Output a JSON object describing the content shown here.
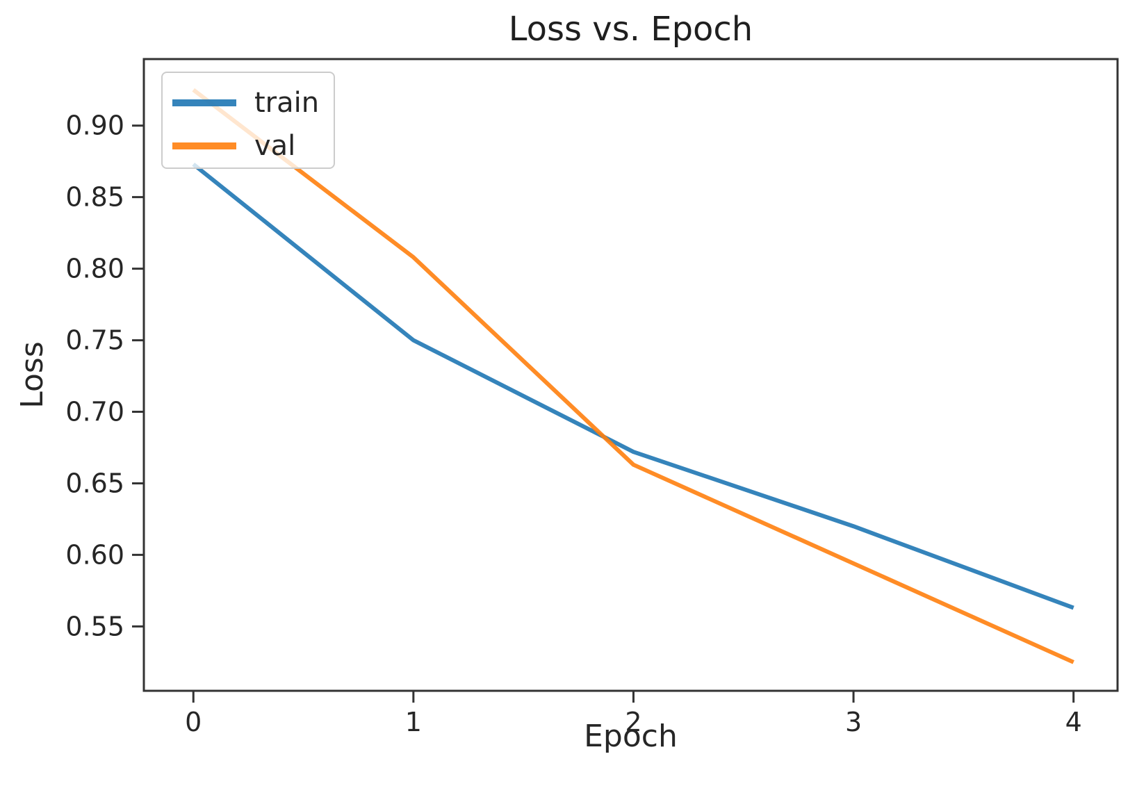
{
  "chart_data": {
    "type": "line",
    "title": "Loss vs. Epoch",
    "xlabel": "Epoch",
    "ylabel": "Loss",
    "x": [
      0,
      1,
      2,
      3,
      4
    ],
    "series": [
      {
        "name": "train",
        "color": "#1f77b4",
        "values": [
          0.873,
          0.75,
          0.672,
          0.62,
          0.563
        ]
      },
      {
        "name": "val",
        "color": "#ff7f0e",
        "values": [
          0.925,
          0.808,
          0.663,
          0.594,
          0.525
        ]
      }
    ],
    "xlim": [
      -0.225,
      4.2
    ],
    "ylim": [
      0.505,
      0.9465
    ],
    "xticks": {
      "values": [
        0,
        1,
        2,
        3,
        4
      ],
      "labels": [
        "0",
        "1",
        "2",
        "3",
        "4"
      ]
    },
    "yticks": {
      "values": [
        0.55,
        0.6,
        0.65,
        0.7,
        0.75,
        0.8,
        0.85,
        0.9
      ],
      "labels": [
        "0.55",
        "0.60",
        "0.65",
        "0.70",
        "0.75",
        "0.80",
        "0.85",
        "0.90"
      ]
    },
    "legend": {
      "position": "upper left",
      "entries": [
        "train",
        "val"
      ]
    },
    "grid": false,
    "line_opacity": 0.9,
    "line_width": 6,
    "axis_color": "#333333",
    "text_color": "#262626"
  }
}
